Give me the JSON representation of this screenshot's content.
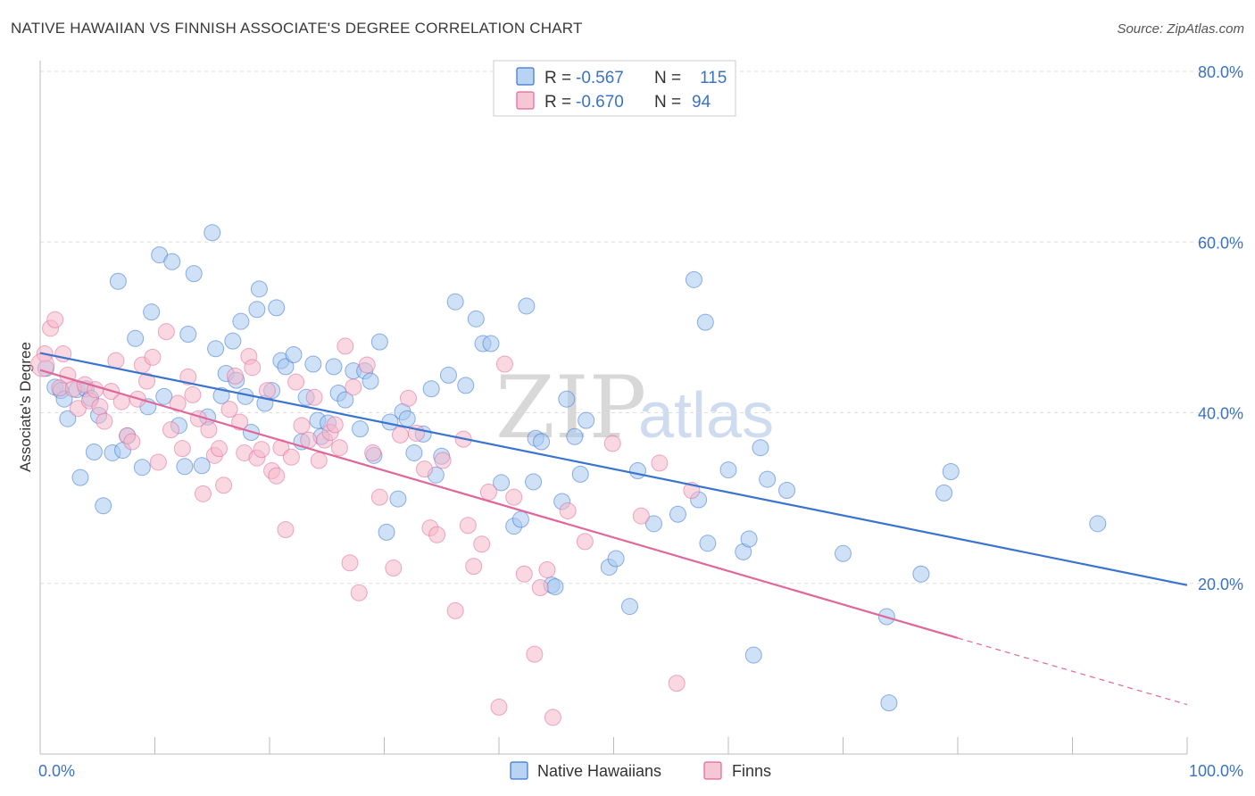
{
  "header": {
    "title": "NATIVE HAWAIIAN VS FINNISH ASSOCIATE'S DEGREE CORRELATION CHART",
    "source": "Source: ZipAtlas.com"
  },
  "watermark": {
    "zip": "ZIP",
    "atlas": "atlas"
  },
  "legend": {
    "rows": [
      {
        "r_label": "R =",
        "r_value": "-0.567",
        "n_label": "N =",
        "n_value": "115",
        "color": "#a8c8f0"
      },
      {
        "r_label": "R =",
        "r_value": "-0.670",
        "n_label": "N =",
        "n_value": "94",
        "color": "#f5b8cb"
      }
    ]
  },
  "chart_data": {
    "type": "scatter",
    "title": "NATIVE HAWAIIAN VS FINNISH ASSOCIATE'S DEGREE CORRELATION CHART",
    "xlabel": "",
    "ylabel": "Associate's Degree",
    "xlim": [
      0,
      100
    ],
    "ylim": [
      0,
      80
    ],
    "x_tick_labels": [
      "0.0%",
      "100.0%"
    ],
    "y_ticks": [
      20,
      40,
      60,
      80
    ],
    "y_tick_labels": [
      "20.0%",
      "40.0%",
      "60.0%",
      "80.0%"
    ],
    "grid": "horizontal-dashed",
    "legend_position": "top-center",
    "series": [
      {
        "name": "Native Hawaiians",
        "color": "#3a74d0",
        "fill": "#a8c8f0",
        "r": -0.567,
        "n": 115,
        "trend": {
          "x0": 0,
          "y0": 47.0,
          "x1": 100,
          "y1": 19.8
        },
        "points": [
          [
            0.5,
            45.2
          ],
          [
            1.3,
            43.0
          ],
          [
            1.8,
            42.6
          ],
          [
            2.1,
            41.6
          ],
          [
            2.4,
            39.3
          ],
          [
            3.2,
            42.7
          ],
          [
            3.5,
            32.4
          ],
          [
            4.0,
            42.8
          ],
          [
            4.4,
            41.7
          ],
          [
            4.7,
            35.4
          ],
          [
            5.1,
            39.7
          ],
          [
            5.5,
            29.1
          ],
          [
            6.3,
            35.3
          ],
          [
            6.8,
            55.4
          ],
          [
            7.2,
            35.6
          ],
          [
            7.6,
            37.3
          ],
          [
            8.3,
            48.7
          ],
          [
            8.9,
            33.6
          ],
          [
            9.4,
            40.7
          ],
          [
            9.7,
            51.8
          ],
          [
            10.4,
            58.5
          ],
          [
            10.8,
            41.9
          ],
          [
            11.5,
            57.7
          ],
          [
            12.1,
            38.5
          ],
          [
            12.6,
            33.7
          ],
          [
            12.9,
            49.2
          ],
          [
            13.4,
            56.3
          ],
          [
            14.1,
            33.8
          ],
          [
            14.6,
            39.5
          ],
          [
            15.0,
            61.1
          ],
          [
            15.3,
            47.5
          ],
          [
            15.8,
            42.0
          ],
          [
            16.2,
            44.6
          ],
          [
            16.8,
            48.4
          ],
          [
            17.1,
            43.8
          ],
          [
            17.5,
            50.7
          ],
          [
            17.9,
            41.9
          ],
          [
            18.4,
            37.7
          ],
          [
            18.9,
            52.1
          ],
          [
            19.1,
            54.5
          ],
          [
            19.6,
            41.1
          ],
          [
            20.2,
            42.6
          ],
          [
            20.6,
            52.3
          ],
          [
            21.0,
            46.1
          ],
          [
            21.4,
            45.4
          ],
          [
            22.1,
            46.8
          ],
          [
            22.8,
            36.6
          ],
          [
            23.2,
            41.8
          ],
          [
            23.8,
            45.7
          ],
          [
            24.2,
            39.1
          ],
          [
            24.5,
            37.2
          ],
          [
            25.1,
            38.8
          ],
          [
            25.6,
            45.4
          ],
          [
            26.0,
            42.3
          ],
          [
            26.6,
            41.5
          ],
          [
            27.3,
            44.9
          ],
          [
            27.9,
            38.1
          ],
          [
            28.3,
            44.9
          ],
          [
            28.8,
            43.7
          ],
          [
            29.1,
            35.0
          ],
          [
            29.6,
            48.3
          ],
          [
            30.2,
            26.0
          ],
          [
            30.5,
            38.9
          ],
          [
            31.2,
            29.9
          ],
          [
            31.6,
            40.1
          ],
          [
            32.0,
            39.3
          ],
          [
            32.6,
            35.3
          ],
          [
            33.4,
            37.5
          ],
          [
            34.1,
            42.8
          ],
          [
            34.5,
            32.7
          ],
          [
            35.0,
            34.9
          ],
          [
            35.6,
            44.4
          ],
          [
            36.2,
            53.0
          ],
          [
            37.1,
            43.2
          ],
          [
            38.0,
            51.0
          ],
          [
            38.6,
            48.1
          ],
          [
            39.3,
            48.1
          ],
          [
            40.2,
            31.8
          ],
          [
            41.3,
            26.7
          ],
          [
            41.9,
            27.5
          ],
          [
            42.4,
            52.5
          ],
          [
            43.0,
            31.9
          ],
          [
            43.2,
            37.0
          ],
          [
            43.7,
            36.6
          ],
          [
            44.6,
            19.8
          ],
          [
            44.9,
            19.6
          ],
          [
            45.5,
            29.6
          ],
          [
            45.9,
            41.6
          ],
          [
            46.6,
            37.2
          ],
          [
            47.1,
            32.8
          ],
          [
            47.6,
            39.1
          ],
          [
            49.6,
            21.9
          ],
          [
            50.2,
            22.9
          ],
          [
            51.4,
            17.3
          ],
          [
            52.1,
            33.2
          ],
          [
            53.5,
            27.0
          ],
          [
            55.6,
            28.1
          ],
          [
            57.0,
            55.6
          ],
          [
            57.4,
            29.8
          ],
          [
            58.0,
            50.6
          ],
          [
            58.2,
            24.7
          ],
          [
            60.0,
            33.3
          ],
          [
            61.3,
            23.7
          ],
          [
            61.8,
            25.2
          ],
          [
            62.2,
            11.6
          ],
          [
            62.8,
            35.9
          ],
          [
            63.4,
            32.2
          ],
          [
            65.1,
            30.9
          ],
          [
            70.0,
            23.5
          ],
          [
            73.8,
            16.1
          ],
          [
            74.0,
            6.0
          ],
          [
            76.8,
            21.1
          ],
          [
            78.8,
            30.6
          ],
          [
            79.4,
            33.1
          ],
          [
            92.2,
            27.0
          ]
        ]
      },
      {
        "name": "Finns",
        "color": "#e0679a",
        "fill": "#f5b8cb",
        "r": -0.67,
        "n": 94,
        "trend": {
          "x0": 0,
          "y0": 45.0,
          "x1": 80,
          "y1": 13.6
        },
        "trend_dashed": {
          "x0": 80,
          "y0": 13.6,
          "x1": 100,
          "y1": 5.8
        },
        "points": [
          [
            0.4,
            46.9
          ],
          [
            0.9,
            49.9
          ],
          [
            1.3,
            50.9
          ],
          [
            1.7,
            42.9
          ],
          [
            2.0,
            46.9
          ],
          [
            2.4,
            44.4
          ],
          [
            2.9,
            42.8
          ],
          [
            3.3,
            40.5
          ],
          [
            3.9,
            43.3
          ],
          [
            4.3,
            41.4
          ],
          [
            4.8,
            42.7
          ],
          [
            5.2,
            40.7
          ],
          [
            5.6,
            39.0
          ],
          [
            6.2,
            42.5
          ],
          [
            6.6,
            46.1
          ],
          [
            7.1,
            41.3
          ],
          [
            7.6,
            37.3
          ],
          [
            8.0,
            36.6
          ],
          [
            8.5,
            41.6
          ],
          [
            8.9,
            45.6
          ],
          [
            9.3,
            43.7
          ],
          [
            9.8,
            46.5
          ],
          [
            10.3,
            34.2
          ],
          [
            11.0,
            49.5
          ],
          [
            11.4,
            38.0
          ],
          [
            12.0,
            41.1
          ],
          [
            12.4,
            35.8
          ],
          [
            12.9,
            44.2
          ],
          [
            13.3,
            42.1
          ],
          [
            13.8,
            39.3
          ],
          [
            14.2,
            30.5
          ],
          [
            14.7,
            38.0
          ],
          [
            15.2,
            35.0
          ],
          [
            15.6,
            35.8
          ],
          [
            16.0,
            31.5
          ],
          [
            16.5,
            40.4
          ],
          [
            17.0,
            44.3
          ],
          [
            17.4,
            38.9
          ],
          [
            17.8,
            35.3
          ],
          [
            18.2,
            46.6
          ],
          [
            18.5,
            45.3
          ],
          [
            18.9,
            34.7
          ],
          [
            19.3,
            35.7
          ],
          [
            19.8,
            42.6
          ],
          [
            20.2,
            33.2
          ],
          [
            20.6,
            32.6
          ],
          [
            21.0,
            35.9
          ],
          [
            21.4,
            26.3
          ],
          [
            21.9,
            34.8
          ],
          [
            22.3,
            43.6
          ],
          [
            22.8,
            38.5
          ],
          [
            23.4,
            36.8
          ],
          [
            23.9,
            41.8
          ],
          [
            24.3,
            34.4
          ],
          [
            24.8,
            36.8
          ],
          [
            25.3,
            37.7
          ],
          [
            25.7,
            38.6
          ],
          [
            26.1,
            35.9
          ],
          [
            26.6,
            47.8
          ],
          [
            27.0,
            22.4
          ],
          [
            27.3,
            43.0
          ],
          [
            27.8,
            18.9
          ],
          [
            28.5,
            45.6
          ],
          [
            29.0,
            35.3
          ],
          [
            29.6,
            30.1
          ],
          [
            30.8,
            21.8
          ],
          [
            31.4,
            37.4
          ],
          [
            32.1,
            41.7
          ],
          [
            32.8,
            37.6
          ],
          [
            33.5,
            33.4
          ],
          [
            34.0,
            26.5
          ],
          [
            34.6,
            25.7
          ],
          [
            35.1,
            34.4
          ],
          [
            36.2,
            16.8
          ],
          [
            36.9,
            36.9
          ],
          [
            37.3,
            26.8
          ],
          [
            37.8,
            22.0
          ],
          [
            38.5,
            24.6
          ],
          [
            39.1,
            30.7
          ],
          [
            40.0,
            5.5
          ],
          [
            40.5,
            45.7
          ],
          [
            41.3,
            30.1
          ],
          [
            42.2,
            21.1
          ],
          [
            43.1,
            11.7
          ],
          [
            43.6,
            19.5
          ],
          [
            44.2,
            21.6
          ],
          [
            44.7,
            4.3
          ],
          [
            46.0,
            28.5
          ],
          [
            47.5,
            24.9
          ],
          [
            49.9,
            36.4
          ],
          [
            52.4,
            27.9
          ],
          [
            54.0,
            34.1
          ],
          [
            55.5,
            8.3
          ],
          [
            56.8,
            30.9
          ]
        ]
      }
    ]
  },
  "bottom_legend": {
    "items": [
      {
        "label": "Native Hawaiians",
        "color": "#a8c8f0"
      },
      {
        "label": "Finns",
        "color": "#f5b8cb"
      }
    ]
  }
}
